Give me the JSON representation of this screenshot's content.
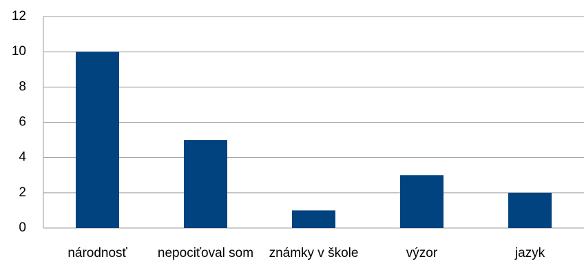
{
  "chart_data": {
    "type": "bar",
    "categories": [
      "národnosť",
      "nepociťoval som",
      "známky v škole",
      "výzor",
      "jazyk"
    ],
    "values": [
      10,
      5,
      1,
      3,
      2
    ],
    "color": "#00437f",
    "ylim": [
      0,
      12
    ],
    "yticks": [
      0,
      2,
      4,
      6,
      8,
      10,
      12
    ],
    "grid": true
  }
}
